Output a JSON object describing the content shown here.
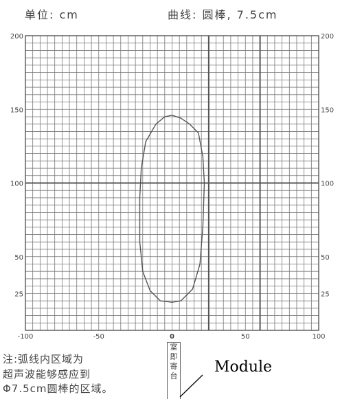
{
  "header": {
    "unit_label": "单位: cm",
    "curve_label": "曲线: 圆棒, 7.5cm"
  },
  "chart_data": {
    "type": "line",
    "title": "曲线: 圆棒, 7.5cm",
    "xlabel": "",
    "ylabel": "",
    "xlim": [
      -100,
      100
    ],
    "ylim": [
      0,
      200
    ],
    "x_tick_labels": [
      "-100",
      "-50",
      "0",
      "50",
      "100"
    ],
    "y_tick_labels_left": [
      "200",
      "150",
      "100",
      "50",
      "25"
    ],
    "y_tick_labels_right": [
      "200",
      "150",
      "100",
      "50",
      "25"
    ],
    "grid": true,
    "series": [
      {
        "values": [
          [
            0,
            146
          ],
          [
            6,
            144
          ],
          [
            12,
            140
          ],
          [
            18,
            134
          ],
          [
            21,
            118
          ],
          [
            22,
            100
          ],
          [
            21,
            70
          ],
          [
            19,
            45
          ],
          [
            14,
            28
          ],
          [
            6,
            20
          ],
          [
            0,
            19
          ],
          [
            -8,
            20
          ],
          [
            -15,
            27
          ],
          [
            -20,
            40
          ],
          [
            -22,
            60
          ],
          [
            -22,
            90
          ],
          [
            -21,
            110
          ],
          [
            -18,
            128
          ],
          [
            -11,
            140
          ],
          [
            -5,
            145
          ],
          [
            0,
            146
          ]
        ]
      }
    ]
  },
  "note": {
    "line1": "注:弧线内区域为",
    "line2": "超声波能够感应到",
    "line3": "Φ7.5cm圆棒的区域。"
  },
  "sensor": {
    "zero_label": "0",
    "label": "室即寄台"
  },
  "module_label": "Module",
  "colors": {
    "grid": "#777777",
    "major_grid": "#555555",
    "curve": "#555555"
  }
}
